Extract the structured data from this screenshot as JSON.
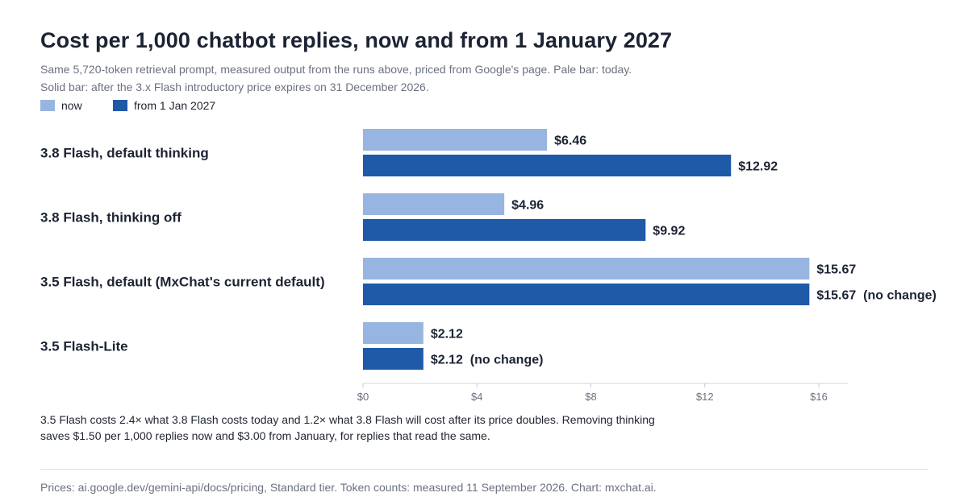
{
  "header": {
    "title": "Cost per 1,000 chatbot replies, now and from 1 January 2027",
    "subtitle_line1": "Same 5,720-token retrieval prompt, measured output from the runs above, priced from Google's page. Pale bar: today.",
    "subtitle_line2": "Solid bar: after the 3.x Flash introductory price expires on 31 December 2026."
  },
  "legend": [
    {
      "label": "now",
      "color": "#98b5e1"
    },
    {
      "label": "from 1 Jan 2027",
      "color": "#1f5aa8"
    }
  ],
  "chart_data": {
    "type": "bar",
    "orientation": "horizontal",
    "categories": [
      "3.8 Flash, default thinking",
      "3.8 Flash, thinking off",
      "3.5 Flash, default (MxChat's current default)",
      "3.5 Flash-Lite"
    ],
    "series": [
      {
        "name": "now",
        "color": "#98b5e1",
        "values": [
          6.46,
          4.96,
          15.67,
          2.12
        ],
        "labels": [
          "$6.46",
          "$4.96",
          "$15.67",
          "$2.12"
        ]
      },
      {
        "name": "from 1 Jan 2027",
        "color": "#1f5aa8",
        "values": [
          12.92,
          9.92,
          15.67,
          2.12
        ],
        "labels": [
          "$12.92",
          "$9.92",
          "$15.67  (no change)",
          "$2.12  (no change)"
        ]
      }
    ],
    "xlim": [
      0,
      16
    ],
    "xticks": [
      0,
      4,
      8,
      12,
      16
    ],
    "xtick_labels": [
      "$0",
      "$4",
      "$8",
      "$12",
      "$16"
    ],
    "grid": false
  },
  "note": {
    "line1": "3.5 Flash costs 2.4× what 3.8 Flash costs today and 1.2× what 3.8 Flash will cost after its price doubles. Removing thinking",
    "line2": "saves $1.50 per 1,000 replies now and $3.00 from January, for replies that read the same."
  },
  "footer": {
    "source": "Prices: ai.google.dev/gemini-api/docs/pricing, Standard tier. Token counts: measured 11 September 2026. Chart: mxchat.ai."
  }
}
